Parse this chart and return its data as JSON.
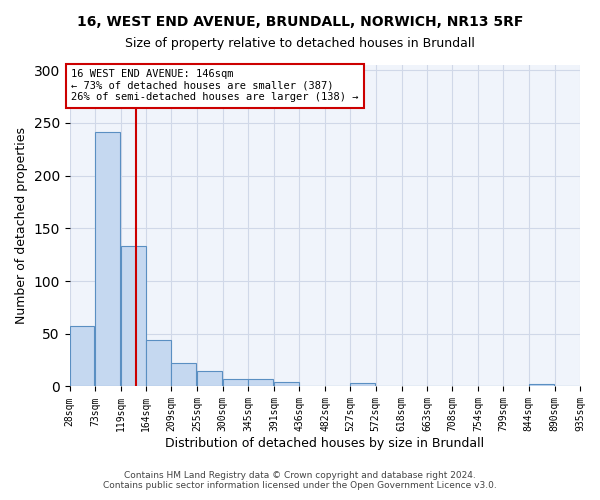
{
  "title1": "16, WEST END AVENUE, BRUNDALL, NORWICH, NR13 5RF",
  "title2": "Size of property relative to detached houses in Brundall",
  "xlabel": "Distribution of detached houses by size in Brundall",
  "ylabel": "Number of detached properties",
  "bar_color": "#c5d8f0",
  "bar_edge_color": "#5a8fc2",
  "annotation_line_color": "#cc0000",
  "annotation_box_color": "#cc0000",
  "annotation_text_line1": "16 WEST END AVENUE: 146sqm",
  "annotation_text_line2": "← 73% of detached houses are smaller (387)",
  "annotation_text_line3": "26% of semi-detached houses are larger (138) →",
  "property_size_sqm": 146,
  "bin_left_edges": [
    28,
    73,
    119,
    164,
    209,
    255,
    300,
    345,
    391,
    436,
    482,
    527,
    572,
    618,
    663,
    708,
    754,
    799,
    844,
    890
  ],
  "bin_labels": [
    "28sqm",
    "73sqm",
    "119sqm",
    "164sqm",
    "209sqm",
    "255sqm",
    "300sqm",
    "345sqm",
    "391sqm",
    "436sqm",
    "482sqm",
    "527sqm",
    "572sqm",
    "618sqm",
    "663sqm",
    "708sqm",
    "754sqm",
    "799sqm",
    "844sqm",
    "890sqm",
    "935sqm"
  ],
  "bar_heights": [
    57,
    241,
    133,
    44,
    22,
    15,
    7,
    7,
    4,
    0,
    0,
    3,
    0,
    0,
    0,
    0,
    0,
    0,
    2,
    0
  ],
  "bin_width": 45,
  "xlim_left": 28,
  "xlim_right": 935,
  "all_xtick_positions": [
    28,
    73,
    119,
    164,
    209,
    255,
    300,
    345,
    391,
    436,
    482,
    527,
    572,
    618,
    663,
    708,
    754,
    799,
    844,
    890,
    935
  ],
  "ylim": [
    0,
    305
  ],
  "yticks": [
    0,
    50,
    100,
    150,
    200,
    250,
    300
  ],
  "grid_color": "#d0d8e8",
  "background_color": "#f0f4fb",
  "footer_line1": "Contains HM Land Registry data © Crown copyright and database right 2024.",
  "footer_line2": "Contains public sector information licensed under the Open Government Licence v3.0."
}
